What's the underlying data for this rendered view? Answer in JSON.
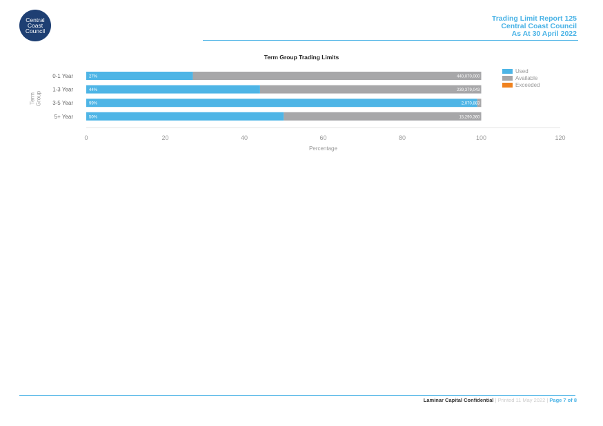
{
  "logo": {
    "lines": [
      "Central",
      "Coast",
      "Council"
    ]
  },
  "header": {
    "line1": "Trading Limit Report 125",
    "line2": "Central Coast Council",
    "line3": "As At 30 April 2022"
  },
  "chart_data": {
    "type": "bar",
    "orientation": "horizontal",
    "stacked": true,
    "title": "Term Group Trading Limits",
    "xlabel": "Percentage",
    "ylabel": "Term Group",
    "xlim": [
      0,
      120
    ],
    "xticks": [
      0,
      20,
      40,
      60,
      80,
      100,
      120
    ],
    "categories": [
      "0-1 Year",
      "1-3 Year",
      "3-5 Year",
      "5+ Year"
    ],
    "series": [
      {
        "name": "Used",
        "values": [
          27,
          44,
          99,
          50
        ]
      },
      {
        "name": "Available",
        "values": [
          73,
          56,
          1,
          50
        ]
      },
      {
        "name": "Exceeded",
        "values": [
          0,
          0,
          0,
          0
        ]
      }
    ],
    "used_labels": [
      "27%",
      "44%",
      "99%",
      "50%"
    ],
    "available_labels": [
      "440,070,000",
      "239,379,043",
      "2,070,883",
      "15,290,360"
    ],
    "legend_position": "right"
  },
  "colors": {
    "used": "#4eb5e6",
    "available": "#a7a7a9",
    "exceeded": "#f0821e",
    "axis_text": "#999999",
    "category_text": "#666666"
  },
  "footer": {
    "confidential": "Laminar Capital Confidential",
    "separator": " | ",
    "printed": "Printed 11 May 2022",
    "page": "Page 7 of 8"
  }
}
